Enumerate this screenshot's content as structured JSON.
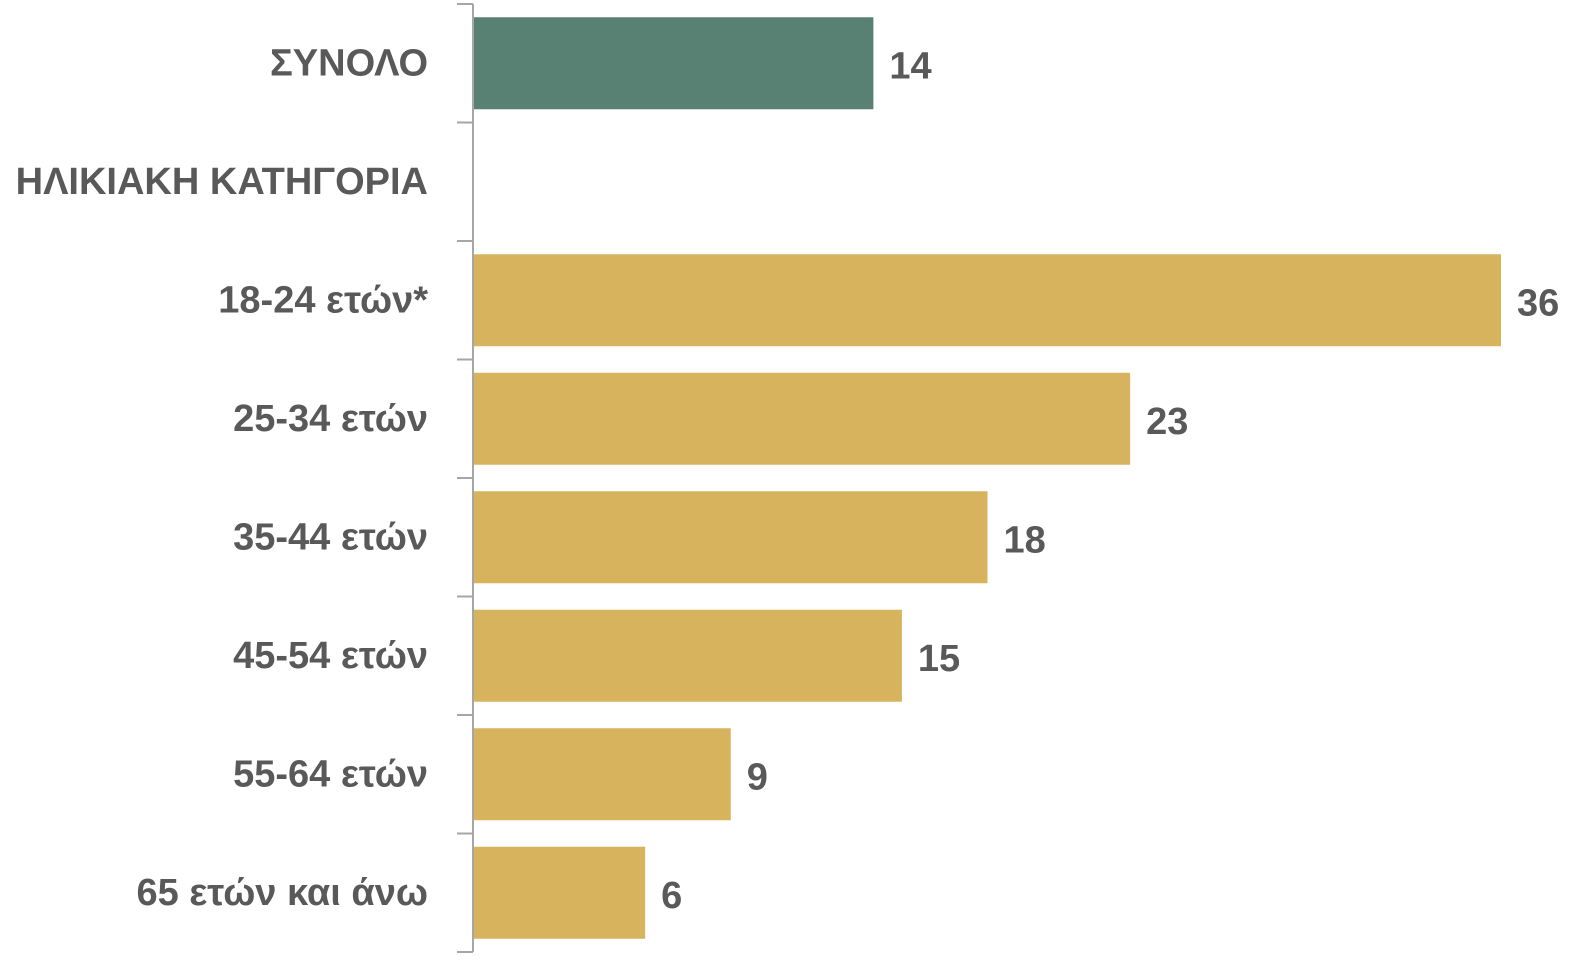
{
  "chart_data": {
    "type": "bar",
    "orientation": "horizontal",
    "categories": [
      "ΣΥΝΟΛΟ",
      "ΗΛΙΚΙΑΚΗ ΚΑΤΗΓΟΡΙΑ",
      "18-24 ετών*",
      "25-34 ετών",
      "35-44 ετών",
      "45-54 ετών",
      "55-64 ετών",
      "65 ετών και άνω"
    ],
    "values": [
      14,
      null,
      36,
      23,
      18,
      15,
      9,
      6
    ],
    "bar_colors": [
      "#588174",
      null,
      "#d8b35e",
      "#d8b35e",
      "#d8b35e",
      "#d8b35e",
      "#d8b35e",
      "#d8b35e"
    ],
    "data_labels": [
      "14",
      "",
      "36",
      "23",
      "18",
      "15",
      "9",
      "6"
    ],
    "xlim": [
      0,
      36
    ],
    "grid": false,
    "legend": "none",
    "axis_color": "#a6a6a6"
  }
}
